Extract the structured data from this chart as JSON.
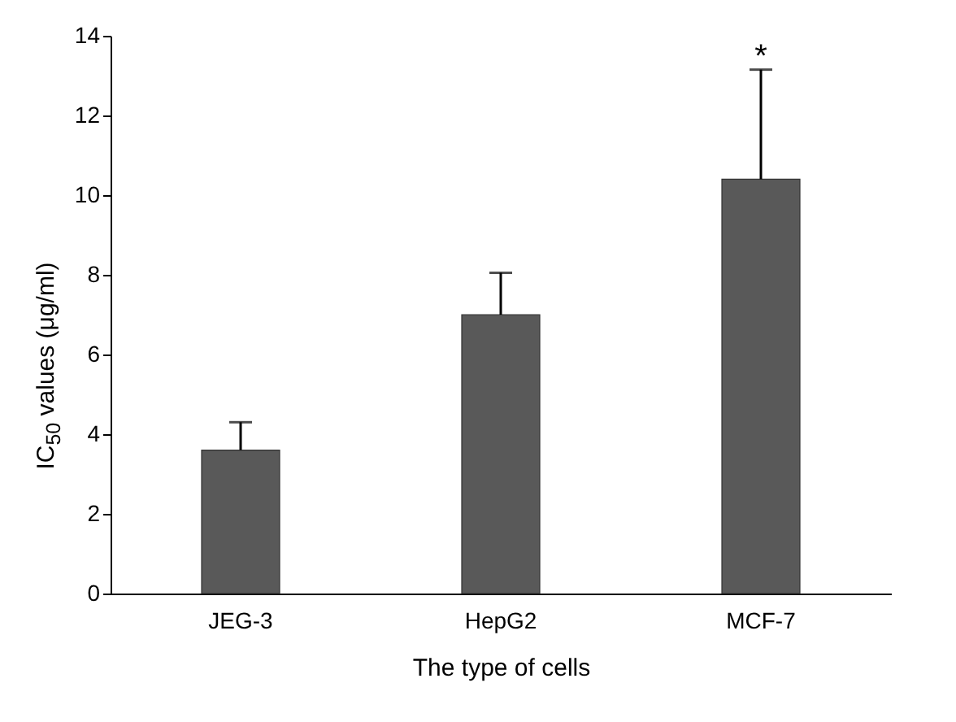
{
  "chart_data": {
    "type": "bar",
    "xlabel": "The type of cells",
    "ylabel": "IC$_{50}$ values (μg/ml)",
    "categories": [
      "JEG-3",
      "HepG2",
      "MCF-7"
    ],
    "values": [
      3.6,
      7.0,
      10.4
    ],
    "color": "#595959",
    "errors": [
      [
        3.6,
        4.3
      ],
      [
        7.0,
        8.05
      ],
      [
        10.4,
        13.15
      ]
    ],
    "ylim": [
      0,
      14
    ],
    "yticks": [
      0,
      2,
      4,
      6,
      8,
      10,
      12,
      14
    ],
    "grid": false,
    "annotations": [
      {
        "text": "*",
        "x": "MCF-7",
        "y": 13.15
      }
    ]
  }
}
